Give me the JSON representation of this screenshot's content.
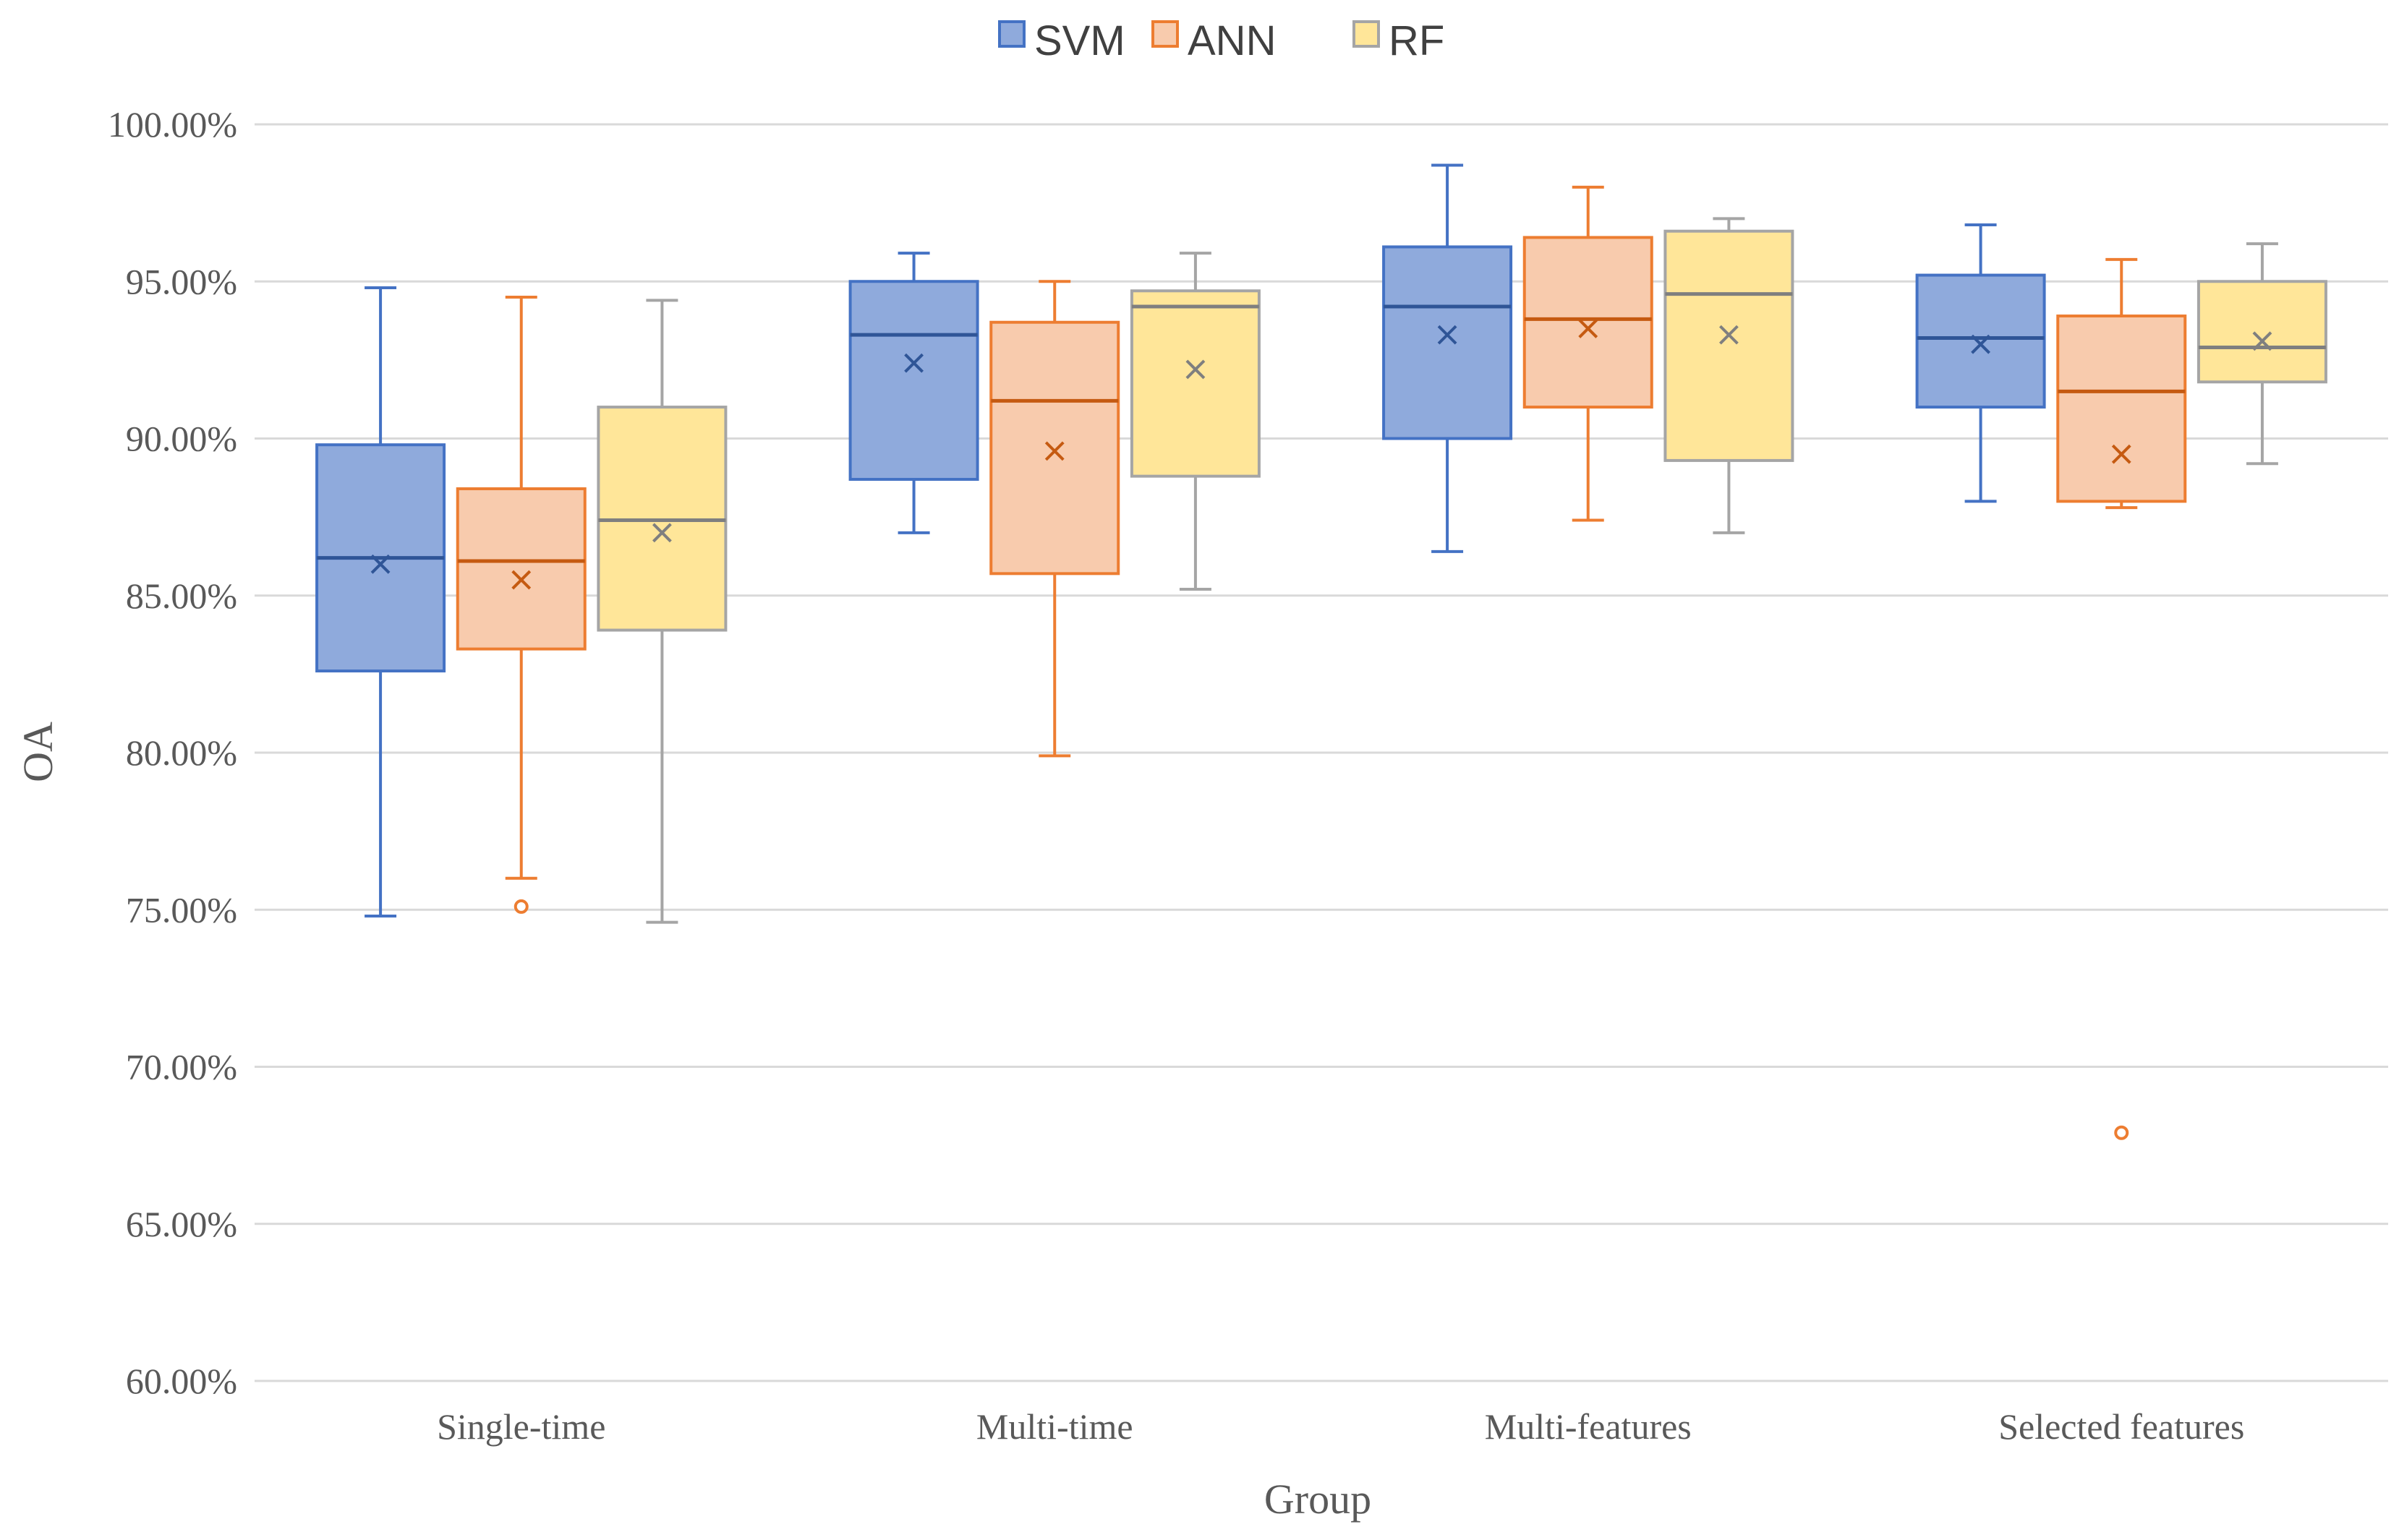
{
  "chart_data": {
    "type": "box",
    "title": "",
    "xlabel": "Group",
    "ylabel": "OA",
    "ylim": [
      0.6,
      1.0
    ],
    "ytick_step": 0.05,
    "ytick_labels": [
      "60.00%",
      "65.00%",
      "70.00%",
      "75.00%",
      "80.00%",
      "85.00%",
      "90.00%",
      "95.00%",
      "100.00%"
    ],
    "grid": true,
    "legend_position": "top-center",
    "categories": [
      "Single-time",
      "Multi-time",
      "Multi-features",
      "Selected features"
    ],
    "series": [
      {
        "name": "SVM",
        "fill": "#8faadc",
        "stroke": "#4472c4",
        "boxes": [
          {
            "whisker_low": 0.748,
            "q1": 0.826,
            "median": 0.862,
            "q3": 0.898,
            "whisker_high": 0.948,
            "mean": 0.86,
            "outliers": []
          },
          {
            "whisker_low": 0.87,
            "q1": 0.887,
            "median": 0.933,
            "q3": 0.95,
            "whisker_high": 0.959,
            "mean": 0.924,
            "outliers": []
          },
          {
            "whisker_low": 0.864,
            "q1": 0.9,
            "median": 0.942,
            "q3": 0.961,
            "whisker_high": 0.987,
            "mean": 0.933,
            "outliers": []
          },
          {
            "whisker_low": 0.88,
            "q1": 0.91,
            "median": 0.932,
            "q3": 0.952,
            "whisker_high": 0.968,
            "mean": 0.93,
            "outliers": []
          }
        ]
      },
      {
        "name": "ANN",
        "fill": "#f8cbad",
        "stroke": "#ed7d31",
        "boxes": [
          {
            "whisker_low": 0.76,
            "q1": 0.833,
            "median": 0.861,
            "q3": 0.884,
            "whisker_high": 0.945,
            "mean": 0.855,
            "outliers": [
              0.751
            ]
          },
          {
            "whisker_low": 0.799,
            "q1": 0.857,
            "median": 0.912,
            "q3": 0.937,
            "whisker_high": 0.95,
            "mean": 0.896,
            "outliers": []
          },
          {
            "whisker_low": 0.874,
            "q1": 0.91,
            "median": 0.938,
            "q3": 0.964,
            "whisker_high": 0.98,
            "mean": 0.935,
            "outliers": []
          },
          {
            "whisker_low": 0.878,
            "q1": 0.88,
            "median": 0.915,
            "q3": 0.939,
            "whisker_high": 0.957,
            "mean": 0.895,
            "outliers": [
              0.679
            ]
          }
        ]
      },
      {
        "name": "RF",
        "fill": "#ffe699",
        "stroke": "#a5a5a5",
        "boxes": [
          {
            "whisker_low": 0.746,
            "q1": 0.839,
            "median": 0.874,
            "q3": 0.91,
            "whisker_high": 0.944,
            "mean": 0.87,
            "outliers": []
          },
          {
            "whisker_low": 0.852,
            "q1": 0.888,
            "median": 0.942,
            "q3": 0.947,
            "whisker_high": 0.959,
            "mean": 0.922,
            "outliers": []
          },
          {
            "whisker_low": 0.87,
            "q1": 0.893,
            "median": 0.946,
            "q3": 0.966,
            "whisker_high": 0.97,
            "mean": 0.933,
            "outliers": []
          },
          {
            "whisker_low": 0.892,
            "q1": 0.918,
            "median": 0.929,
            "q3": 0.95,
            "whisker_high": 0.962,
            "mean": 0.931,
            "outliers": []
          }
        ]
      }
    ],
    "median_line_colors": {
      "SVM": "#2f5597",
      "ANN": "#c55a11",
      "RF": "#7f7f7f"
    },
    "gridline_color": "#d9d9d9",
    "axis_text_color": "#595959"
  }
}
